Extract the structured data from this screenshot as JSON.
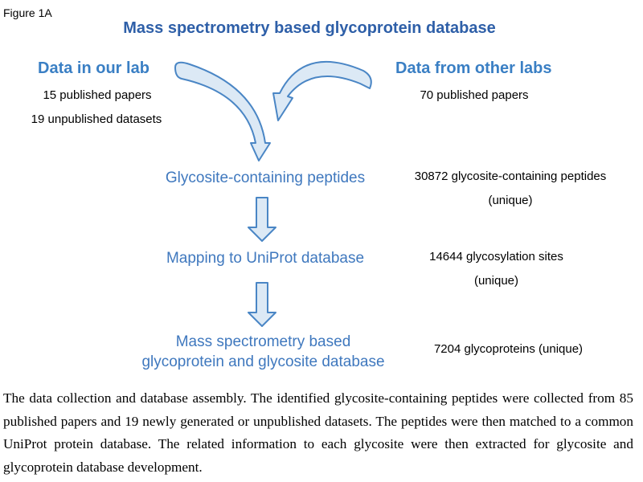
{
  "figure_label": "Figure 1A",
  "title": "Mass spectrometry based glycoprotein database",
  "sources": {
    "our_lab": {
      "title": "Data in our lab",
      "lines": [
        "15 published papers",
        "19 unpublished datasets"
      ]
    },
    "other_labs": {
      "title": "Data from other labs",
      "lines": [
        "70 published papers"
      ]
    }
  },
  "steps": [
    {
      "label_lines": [
        "Glycosite-containing peptides"
      ],
      "stat_lines": [
        "30872 glycosite-containing peptides",
        "(unique)"
      ]
    },
    {
      "label_lines": [
        "Mapping to UniProt database"
      ],
      "stat_lines": [
        "14644 glycosylation sites",
        "(unique)"
      ]
    },
    {
      "label_lines": [
        "Mass spectrometry based",
        "glycoprotein and glycosite database"
      ],
      "stat_lines": [
        "7204 glycoproteins (unique)"
      ]
    }
  ],
  "caption": "The data collection and database assembly. The identified glycosite-containing peptides were collected from 85 published papers and 19 newly generated or unpublished datasets. The peptides were then matched to a common UniProt protein database. The related information to each glycosite were then extracted for glycosite and glycoprotein database development.",
  "colors": {
    "title": "#2e5fa8",
    "heading": "#3a7fc4",
    "step_text": "#3f78be",
    "arrow_fill": "#dce9f5",
    "arrow_stroke": "#4a86c5"
  }
}
